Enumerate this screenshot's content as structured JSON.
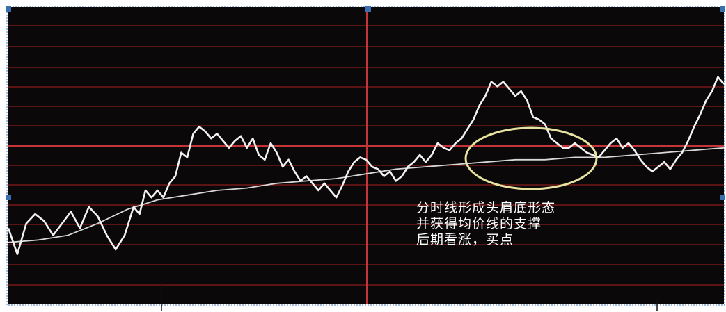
{
  "chart_data": {
    "type": "line",
    "title": "",
    "xlabel": "",
    "ylabel": "",
    "background": "#0a0808",
    "grid": "horizontal",
    "colors": {
      "price_line": "#f2f2f2",
      "avg_line": "#d8d8d8",
      "grid_line": "#8a1c1c",
      "divider": "#c4353a",
      "ellipse": "#e8e2a0",
      "annotation": "#ffffff"
    },
    "ylim": [
      0,
      100
    ],
    "xlim": [
      0,
      240
    ],
    "series": [
      {
        "values": [
          [
            0,
            24
          ],
          [
            3,
            13
          ],
          [
            6,
            26
          ],
          [
            9,
            30
          ],
          [
            12,
            27
          ],
          [
            15,
            21
          ],
          [
            18,
            26
          ],
          [
            21,
            31
          ],
          [
            24,
            24
          ],
          [
            27,
            33
          ],
          [
            30,
            29
          ],
          [
            33,
            21
          ],
          [
            36,
            15
          ],
          [
            39,
            21
          ],
          [
            42,
            33
          ],
          [
            44,
            30
          ],
          [
            46,
            40
          ],
          [
            48,
            37
          ],
          [
            50,
            40
          ],
          [
            52,
            37
          ],
          [
            54,
            43
          ],
          [
            56,
            46
          ],
          [
            58,
            56
          ],
          [
            60,
            54
          ],
          [
            62,
            64
          ],
          [
            64,
            67
          ],
          [
            66,
            65
          ],
          [
            68,
            62
          ],
          [
            70,
            64
          ],
          [
            72,
            61
          ],
          [
            74,
            58
          ],
          [
            76,
            61
          ],
          [
            78,
            63
          ],
          [
            80,
            58
          ],
          [
            82,
            62
          ],
          [
            84,
            55
          ],
          [
            86,
            53
          ],
          [
            88,
            60
          ],
          [
            90,
            56
          ],
          [
            92,
            50
          ],
          [
            94,
            53
          ],
          [
            96,
            48
          ],
          [
            98,
            44
          ],
          [
            100,
            46
          ],
          [
            102,
            43
          ],
          [
            104,
            40
          ],
          [
            106,
            43
          ],
          [
            108,
            40
          ],
          [
            110,
            37
          ],
          [
            112,
            42
          ],
          [
            114,
            48
          ],
          [
            116,
            52
          ],
          [
            118,
            54
          ],
          [
            120,
            53
          ],
          [
            122,
            50
          ],
          [
            124,
            49
          ],
          [
            126,
            46
          ],
          [
            128,
            48
          ],
          [
            130,
            44
          ],
          [
            132,
            46
          ],
          [
            134,
            50
          ],
          [
            136,
            52
          ],
          [
            138,
            55
          ],
          [
            140,
            52
          ],
          [
            142,
            55
          ],
          [
            144,
            60
          ],
          [
            146,
            58
          ],
          [
            148,
            57
          ],
          [
            150,
            60
          ],
          [
            152,
            62
          ],
          [
            154,
            66
          ],
          [
            156,
            70
          ],
          [
            158,
            76
          ],
          [
            160,
            80
          ],
          [
            162,
            86
          ],
          [
            164,
            84
          ],
          [
            166,
            86
          ],
          [
            168,
            83
          ],
          [
            170,
            80
          ],
          [
            172,
            82
          ],
          [
            174,
            78
          ],
          [
            176,
            71
          ],
          [
            178,
            70
          ],
          [
            180,
            68
          ],
          [
            182,
            62
          ],
          [
            184,
            60
          ],
          [
            186,
            58
          ],
          [
            188,
            58
          ],
          [
            190,
            60
          ],
          [
            192,
            58
          ],
          [
            194,
            56
          ],
          [
            196,
            55
          ],
          [
            198,
            54
          ],
          [
            200,
            57
          ],
          [
            202,
            60
          ],
          [
            204,
            62
          ],
          [
            206,
            58
          ],
          [
            208,
            60
          ],
          [
            210,
            57
          ],
          [
            212,
            53
          ],
          [
            214,
            50
          ],
          [
            216,
            48
          ],
          [
            218,
            50
          ],
          [
            220,
            52
          ],
          [
            222,
            49
          ],
          [
            224,
            53
          ],
          [
            226,
            56
          ],
          [
            228,
            61
          ],
          [
            230,
            67
          ],
          [
            232,
            72
          ],
          [
            234,
            78
          ],
          [
            236,
            82
          ],
          [
            238,
            88
          ],
          [
            240,
            85
          ]
        ],
        "color": "#f2f2f2"
      },
      {
        "values": [
          [
            0,
            18
          ],
          [
            10,
            19
          ],
          [
            20,
            21
          ],
          [
            30,
            26
          ],
          [
            40,
            32
          ],
          [
            50,
            36
          ],
          [
            60,
            38
          ],
          [
            70,
            40
          ],
          [
            80,
            41
          ],
          [
            90,
            43
          ],
          [
            100,
            44
          ],
          [
            110,
            45
          ],
          [
            120,
            47
          ],
          [
            130,
            49
          ],
          [
            140,
            50
          ],
          [
            150,
            51
          ],
          [
            160,
            52
          ],
          [
            170,
            53
          ],
          [
            180,
            53
          ],
          [
            190,
            54
          ],
          [
            200,
            54
          ],
          [
            210,
            55
          ],
          [
            220,
            56
          ],
          [
            230,
            57
          ],
          [
            240,
            58
          ]
        ],
        "color": "#d8d8d8"
      }
    ],
    "annotations": [
      "分时线形成头肩底形态",
      "并获得均价线的支撑",
      "后期看涨，买点"
    ]
  }
}
